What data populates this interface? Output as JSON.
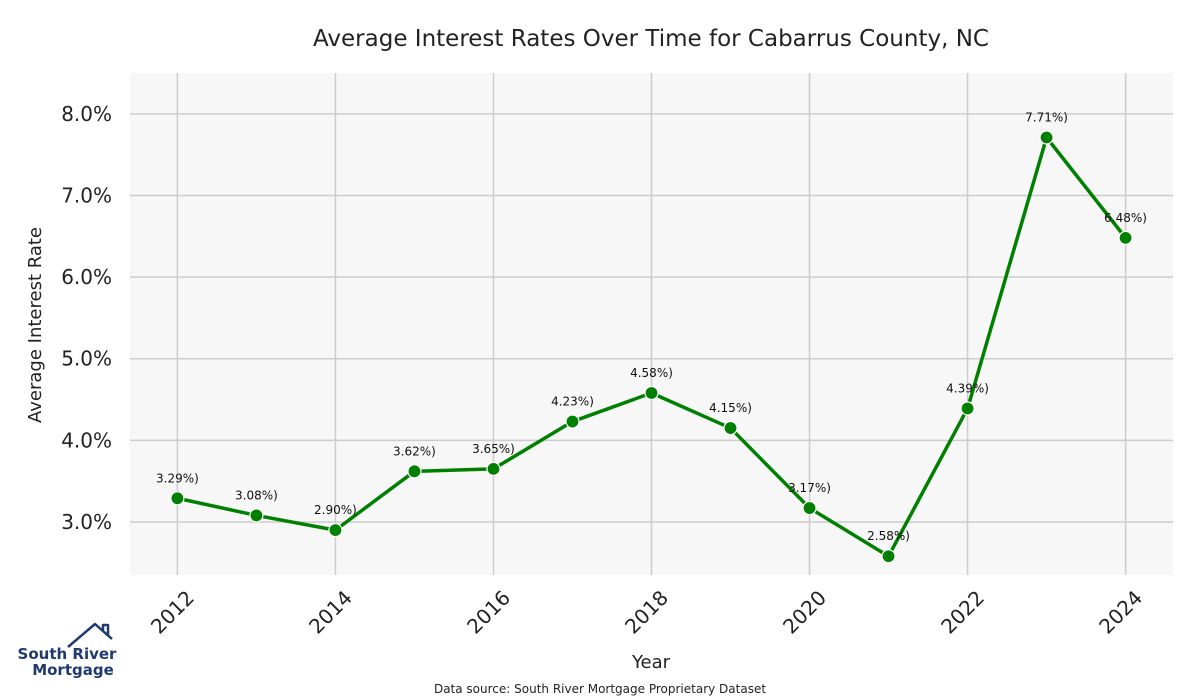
{
  "chart_data": {
    "type": "line",
    "title": "Average Interest Rates Over Time for Cabarrus County, NC",
    "xlabel": "Year",
    "ylabel": "Average Interest Rate",
    "x": [
      2012,
      2013,
      2014,
      2015,
      2016,
      2017,
      2018,
      2019,
      2020,
      2021,
      2022,
      2023,
      2024
    ],
    "xticks": [
      "2012",
      "2014",
      "2016",
      "2018",
      "2020",
      "2022",
      "2024"
    ],
    "xlim": [
      2011.4,
      2024.6
    ],
    "ylim": [
      2.35,
      8.5
    ],
    "yticks": [
      "3.0%",
      "4.0%",
      "5.0%",
      "6.0%",
      "7.0%",
      "8.0%"
    ],
    "series": [
      {
        "values": [
          3.29,
          3.08,
          2.9,
          3.62,
          3.65,
          4.23,
          4.58,
          4.15,
          3.17,
          2.58,
          4.39,
          7.71,
          6.48
        ],
        "labels": [
          "3.29%)",
          "3.08%)",
          "2.90%)",
          "3.62%)",
          "3.65%)",
          "4.23%)",
          "4.58%)",
          "4.15%)",
          "3.17%)",
          "2.58%)",
          "4.39%)",
          "7.71%)",
          "6.48%)"
        ],
        "color": "#008000"
      }
    ],
    "grid": true,
    "background": "#f7f7f7",
    "grid_color": "#cccccc",
    "source_note": "Data source: South River Mortgage Proprietary Dataset"
  },
  "logo": {
    "line1": "South River",
    "line2": "Mortgage",
    "color": "#1f3a6e",
    "icon": "house-roof-icon"
  }
}
